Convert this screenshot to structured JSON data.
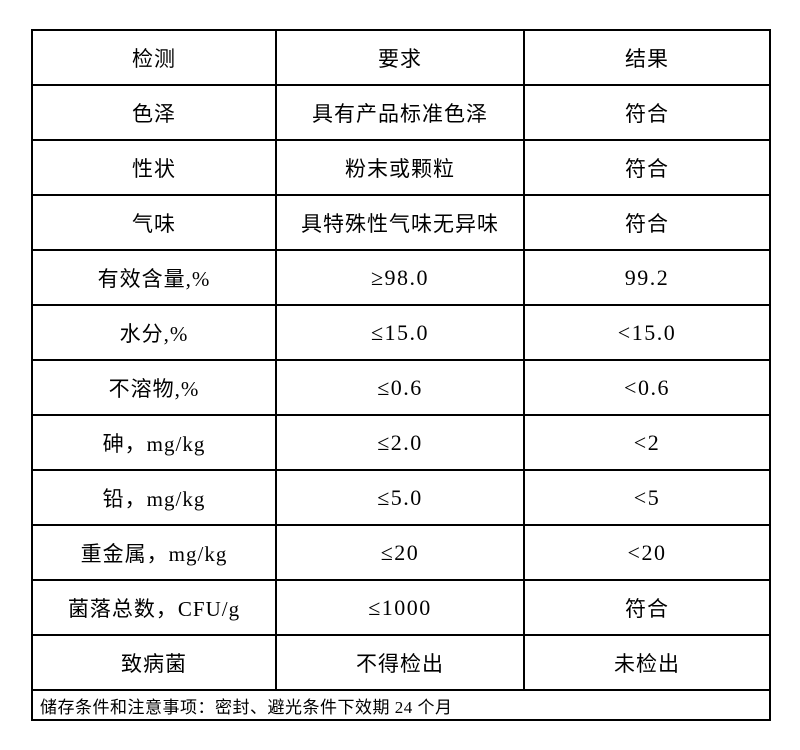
{
  "table": {
    "headers": [
      "检测",
      "要求",
      "结果"
    ],
    "rows": [
      {
        "item": "色泽",
        "requirement": "具有产品标准色泽",
        "result": "符合"
      },
      {
        "item": "性状",
        "requirement": "粉末或颗粒",
        "result": "符合"
      },
      {
        "item": "气味",
        "requirement": "具特殊性气味无异味",
        "result": "符合"
      },
      {
        "item": "有效含量,%",
        "requirement": "≥98.0",
        "result": "99.2"
      },
      {
        "item": "水分,%",
        "requirement": "≤15.0",
        "result": "<15.0"
      },
      {
        "item": "不溶物,%",
        "requirement": "≤0.6",
        "result": "<0.6"
      },
      {
        "item": "砷，mg/kg",
        "requirement": "≤2.0",
        "result": "<2"
      },
      {
        "item": "铅，mg/kg",
        "requirement": "≤5.0",
        "result": "<5"
      },
      {
        "item": "重金属，mg/kg",
        "requirement": "≤20",
        "result": "<20"
      },
      {
        "item": "菌落总数，CFU/g",
        "requirement": "≤1000",
        "result": "符合"
      },
      {
        "item": "致病菌",
        "requirement": "不得检出",
        "result": "未检出"
      }
    ],
    "footer": "储存条件和注意事项：密封、避光条件下效期 24 个月"
  }
}
